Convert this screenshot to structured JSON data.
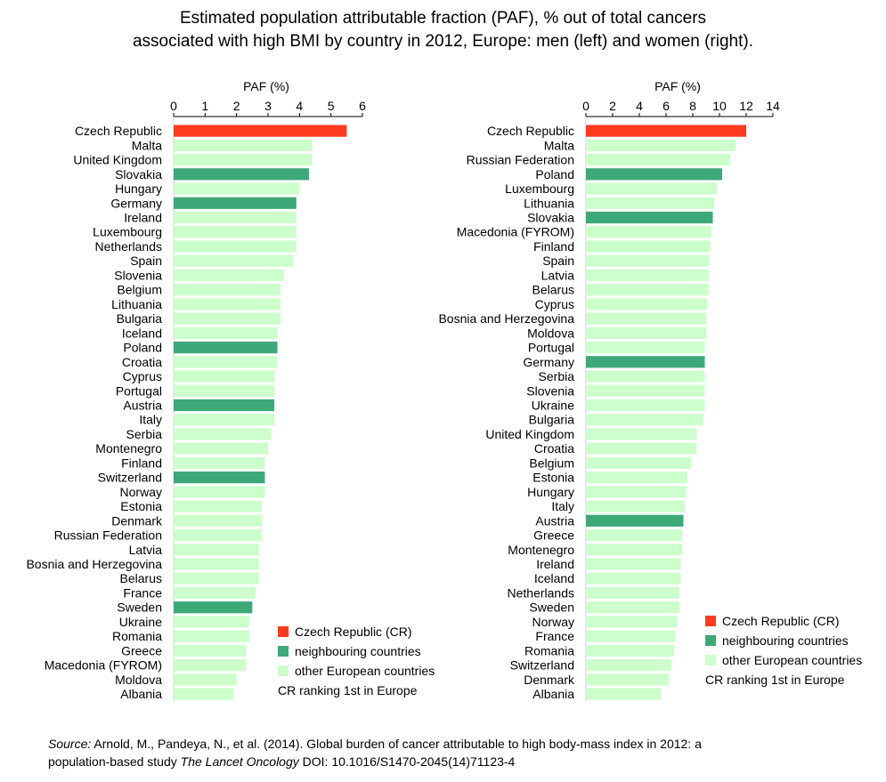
{
  "title": {
    "line1": "Estimated population attributable fraction (PAF), % out of total cancers",
    "line2": "associated with high BMI by country in 2012, Europe: men (left) and women (right)."
  },
  "colors": {
    "cr": "#ff3b1f",
    "neighbour": "#3da979",
    "other": "#ccffcc",
    "axis": "#000000"
  },
  "legend": {
    "cr": "Czech Republic (CR)",
    "neighbour": "neighbouring countries",
    "other": "other European countries",
    "note": "CR ranking 1st in Europe"
  },
  "source": {
    "label": "Source:",
    "text1": " Arnold, M., Pandeya, N., et al. (2014). Global burden of cancer attributable to high body-mass index in 2012: a",
    "text2a": "population-based study ",
    "journal": "The Lancet Oncology",
    "text2b": " DOI: 10.1016/S1470-2045(14)71123-4"
  },
  "chart_data": [
    {
      "type": "bar",
      "orientation": "horizontal",
      "xlabel": "PAF (%)",
      "xlim": [
        0,
        6
      ],
      "ticks": [
        0,
        1,
        2,
        3,
        4,
        5,
        6
      ],
      "grid": false,
      "legend_position": "bottom-right",
      "categories": [
        "Czech Republic",
        "Malta",
        "United Kingdom",
        "Slovakia",
        "Hungary",
        "Germany",
        "Ireland",
        "Luxembourg",
        "Netherlands",
        "Spain",
        "Slovenia",
        "Belgium",
        "Lithuania",
        "Bulgaria",
        "Iceland",
        "Poland",
        "Croatia",
        "Cyprus",
        "Portugal",
        "Austria",
        "Italy",
        "Serbia",
        "Montenegro",
        "Finland",
        "Switzerland",
        "Norway",
        "Estonia",
        "Denmark",
        "Russian Federation",
        "Latvia",
        "Bosnia and Herzegovina",
        "Belarus",
        "France",
        "Sweden",
        "Ukraine",
        "Romania",
        "Greece",
        "Macedonia (FYROM)",
        "Moldova",
        "Albania"
      ],
      "values": [
        5.5,
        4.4,
        4.4,
        4.3,
        4.0,
        3.9,
        3.9,
        3.9,
        3.9,
        3.8,
        3.5,
        3.4,
        3.4,
        3.4,
        3.3,
        3.3,
        3.3,
        3.2,
        3.2,
        3.2,
        3.2,
        3.1,
        3.0,
        2.9,
        2.9,
        2.9,
        2.8,
        2.8,
        2.8,
        2.7,
        2.7,
        2.7,
        2.6,
        2.5,
        2.4,
        2.4,
        2.3,
        2.3,
        2.0,
        1.9
      ],
      "groups": [
        "cr",
        "other",
        "other",
        "neighbour",
        "other",
        "neighbour",
        "other",
        "other",
        "other",
        "other",
        "other",
        "other",
        "other",
        "other",
        "other",
        "neighbour",
        "other",
        "other",
        "other",
        "neighbour",
        "other",
        "other",
        "other",
        "other",
        "neighbour",
        "other",
        "other",
        "other",
        "other",
        "other",
        "other",
        "other",
        "other",
        "neighbour",
        "other",
        "other",
        "other",
        "other",
        "other",
        "other"
      ]
    },
    {
      "type": "bar",
      "orientation": "horizontal",
      "xlabel": "PAF (%)",
      "xlim": [
        0,
        14
      ],
      "ticks": [
        0,
        2,
        4,
        6,
        8,
        10,
        12,
        14
      ],
      "grid": false,
      "legend_position": "bottom-right",
      "categories": [
        "Czech Republic",
        "Malta",
        "Russian Federation",
        "Poland",
        "Luxembourg",
        "Lithuania",
        "Slovakia",
        "Macedonia (FYROM)",
        "Finland",
        "Spain",
        "Latvia",
        "Belarus",
        "Cyprus",
        "Bosnia and Herzegovina",
        "Moldova",
        "Portugal",
        "Germany",
        "Serbia",
        "Slovenia",
        "Ukraine",
        "Bulgaria",
        "United Kingdom",
        "Croatia",
        "Belgium",
        "Estonia",
        "Hungary",
        "Italy",
        "Austria",
        "Greece",
        "Montenegro",
        "Ireland",
        "Iceland",
        "Netherlands",
        "Sweden",
        "Norway",
        "France",
        "Romania",
        "Switzerland",
        "Denmark",
        "Albania"
      ],
      "values": [
        12.0,
        11.2,
        10.8,
        10.2,
        9.8,
        9.6,
        9.5,
        9.4,
        9.3,
        9.2,
        9.2,
        9.2,
        9.1,
        9.0,
        9.0,
        8.9,
        8.9,
        8.9,
        8.9,
        8.9,
        8.8,
        8.3,
        8.3,
        7.9,
        7.6,
        7.5,
        7.4,
        7.3,
        7.2,
        7.2,
        7.1,
        7.1,
        7.0,
        7.0,
        6.8,
        6.7,
        6.6,
        6.4,
        6.2,
        5.6
      ],
      "groups": [
        "cr",
        "other",
        "other",
        "neighbour",
        "other",
        "other",
        "neighbour",
        "other",
        "other",
        "other",
        "other",
        "other",
        "other",
        "other",
        "other",
        "other",
        "neighbour",
        "other",
        "other",
        "other",
        "other",
        "other",
        "other",
        "other",
        "other",
        "other",
        "other",
        "neighbour",
        "other",
        "other",
        "other",
        "other",
        "other",
        "other",
        "other",
        "other",
        "other",
        "other",
        "other",
        "other"
      ]
    }
  ]
}
